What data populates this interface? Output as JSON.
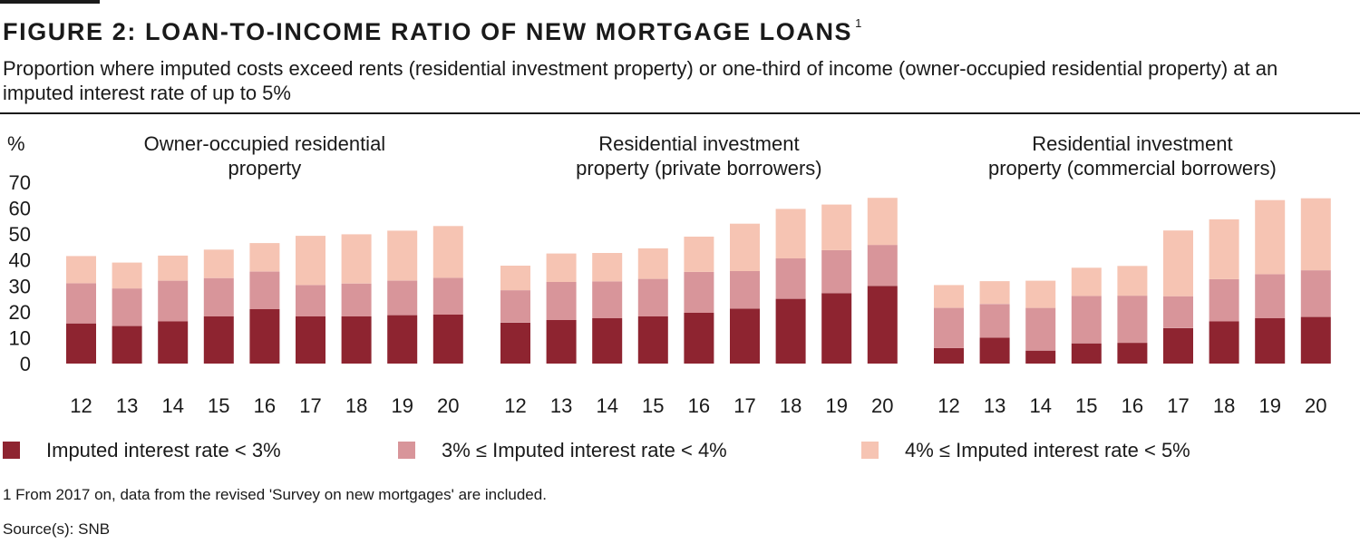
{
  "title": "FIGURE 2: LOAN-TO-INCOME RATIO OF NEW MORTGAGE LOANS",
  "title_footnote_mark": "1",
  "subtitle": "Proportion where imputed costs exceed rents (residential investment property) or one-third of income (owner-occupied residential property) at an imputed interest rate of up to 5%",
  "footnote": "1   From 2017 on, data from the revised 'Survey on new mortgages' are included.",
  "source": "Source(s): SNB",
  "chart_data": {
    "type": "bar",
    "stacked": true,
    "y_unit_label": "%",
    "ylim": [
      0,
      70
    ],
    "y_ticks": [
      0,
      10,
      20,
      30,
      40,
      50,
      60,
      70
    ],
    "grid": false,
    "legend_position": "bottom",
    "colors": [
      "#8e2430",
      "#d8959a",
      "#f6c4b3"
    ],
    "legend": [
      "Imputed interest rate < 3%",
      "3% ≤ Imputed interest rate < 4%",
      "4% ≤ Imputed interest rate < 5%"
    ],
    "panels": [
      {
        "title": "Owner-occupied residential property",
        "title_lines": [
          "Owner-occupied residential",
          "property"
        ],
        "categories": [
          "12",
          "13",
          "14",
          "15",
          "16",
          "17",
          "18",
          "19",
          "20"
        ],
        "series": [
          {
            "name": "Imputed interest rate < 3%",
            "values": [
              15.5,
              14.5,
              16.3,
              18.2,
              21,
              18.2,
              18.2,
              18.7,
              18.9
            ]
          },
          {
            "name": "3% ≤ Imputed interest rate < 4%",
            "values": [
              15.5,
              14.5,
              15.7,
              14.8,
              14.5,
              12.1,
              12.7,
              13.3,
              14.2
            ]
          },
          {
            "name": "4% ≤ Imputed interest rate < 5%",
            "values": [
              10.5,
              10.0,
              9.7,
              11.0,
              11.0,
              19.0,
              19.0,
              19.3,
              20.0
            ]
          }
        ]
      },
      {
        "title": "Residential investment property (private borrowers)",
        "title_lines": [
          "Residential investment",
          "property (private borrowers)"
        ],
        "categories": [
          "12",
          "13",
          "14",
          "15",
          "16",
          "17",
          "18",
          "19",
          "20"
        ],
        "series": [
          {
            "name": "Imputed interest rate < 3%",
            "values": [
              15.8,
              16.8,
              17.5,
              18.2,
              19.6,
              21.2,
              25.0,
              27.2,
              30.0
            ]
          },
          {
            "name": "3% ≤ Imputed interest rate < 4%",
            "values": [
              12.5,
              14.7,
              14.2,
              14.5,
              15.8,
              14.5,
              15.6,
              16.6,
              15.8
            ]
          },
          {
            "name": "4% ≤ Imputed interest rate < 5%",
            "values": [
              9.5,
              11.0,
              11.0,
              11.8,
              13.6,
              18.3,
              19.1,
              17.6,
              18.2
            ]
          }
        ]
      },
      {
        "title": "Residential investment property (commercial borrowers)",
        "title_lines": [
          "Residential investment",
          "property (commercial borrowers)"
        ],
        "categories": [
          "12",
          "13",
          "14",
          "15",
          "16",
          "17",
          "18",
          "19",
          "20"
        ],
        "series": [
          {
            "name": "Imputed interest rate < 3%",
            "values": [
              6.0,
              10.0,
              5.0,
              7.8,
              8.0,
              13.7,
              16.3,
              17.5,
              18.0
            ]
          },
          {
            "name": "3% ≤ Imputed interest rate < 4%",
            "values": [
              15.5,
              13.0,
              16.5,
              18.3,
              18.2,
              12.3,
              16.3,
              17.0,
              18.0
            ]
          },
          {
            "name": "4% ≤ Imputed interest rate < 5%",
            "values": [
              8.8,
              8.8,
              10.5,
              10.9,
              11.5,
              25.4,
              23.1,
              28.6,
              27.8
            ]
          }
        ]
      }
    ]
  }
}
